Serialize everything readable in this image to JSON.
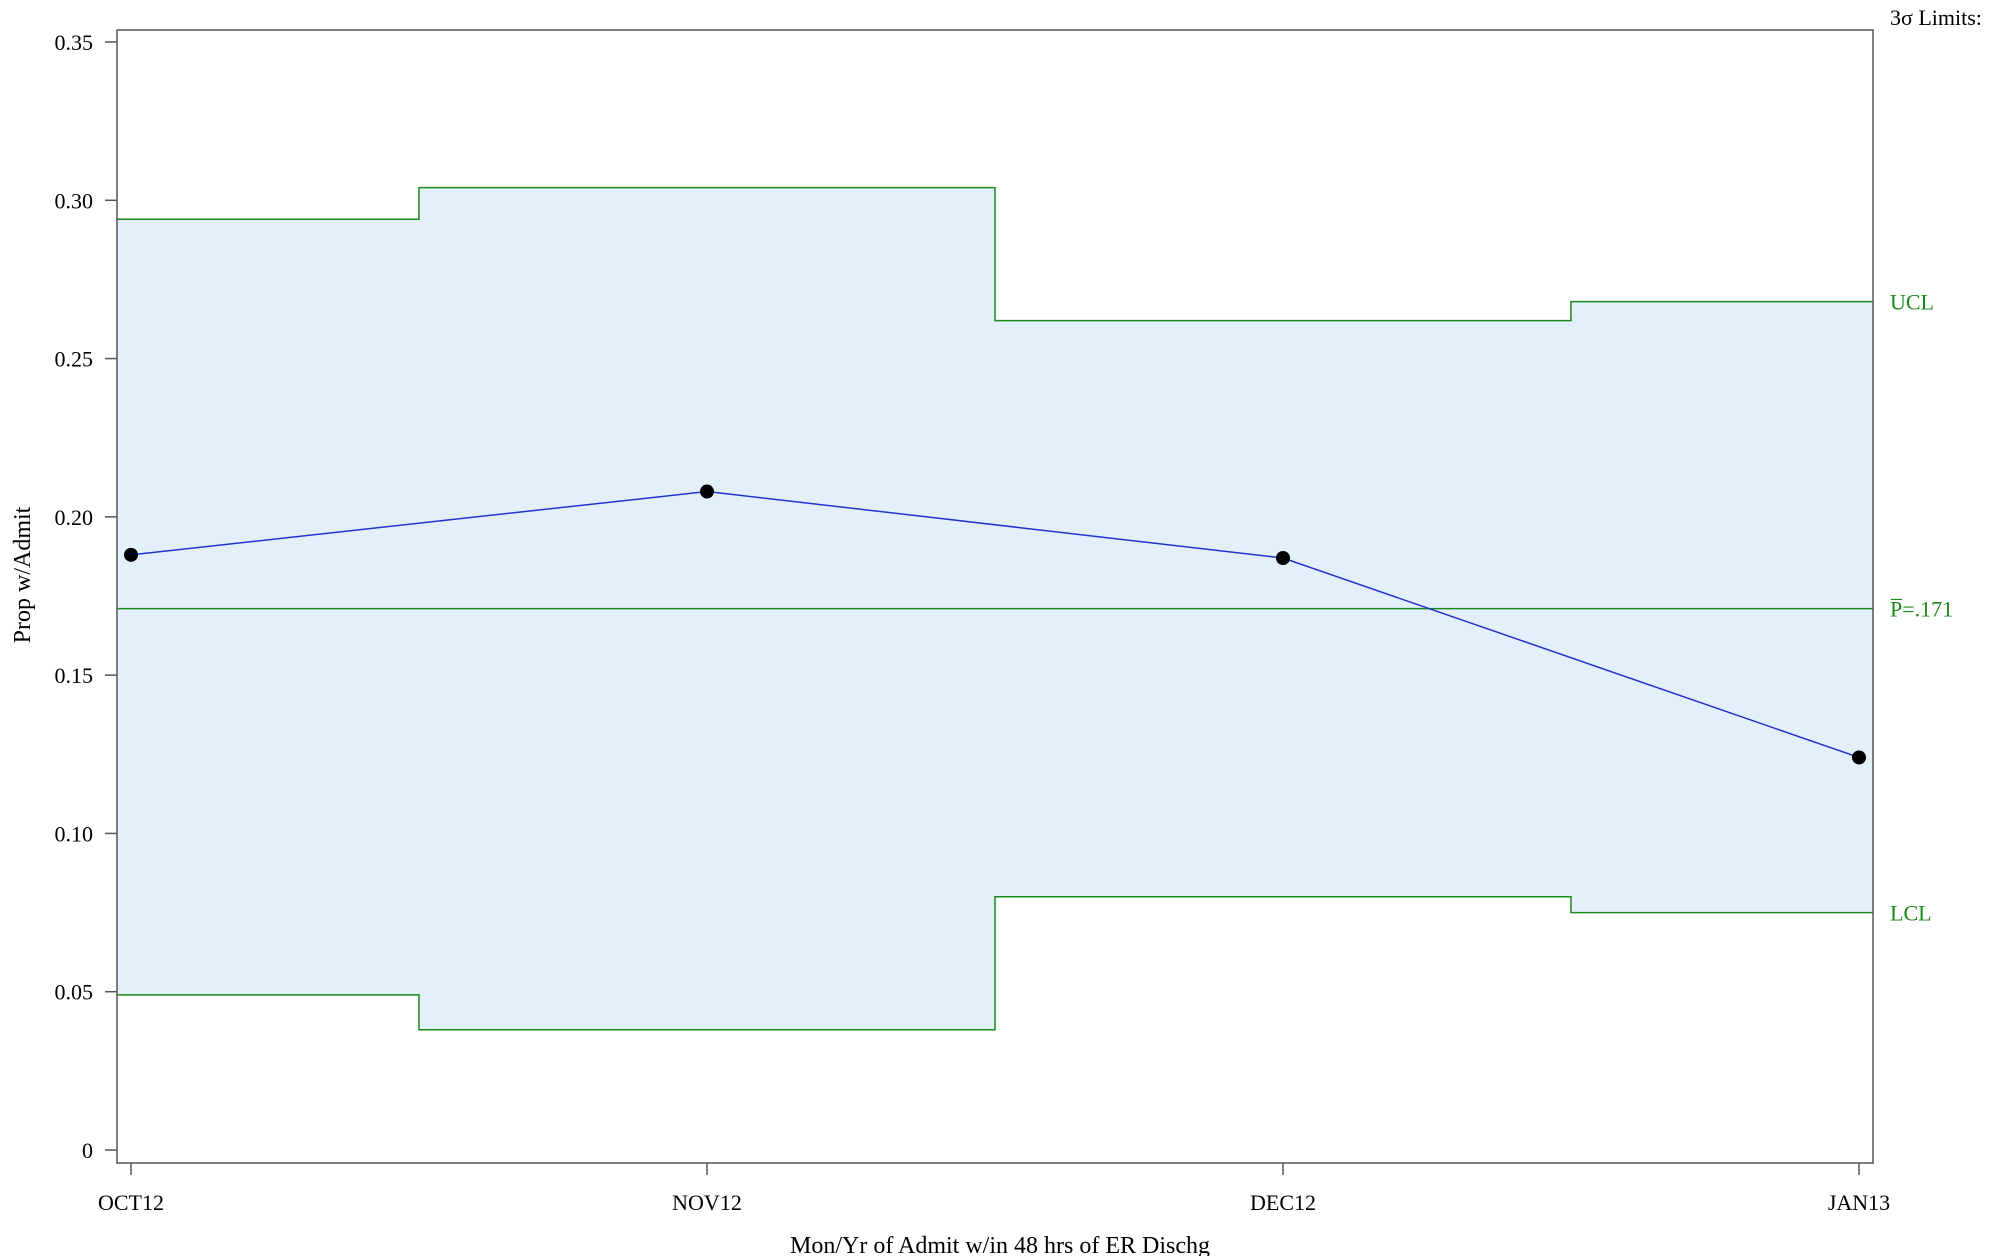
{
  "colors": {
    "limits": "#1a8a1a",
    "band": "#e3f0fc",
    "series": "#2233cc",
    "markers": "#000000",
    "frame": "#555555"
  },
  "chart_data": {
    "type": "line",
    "subtype": "p-chart (control chart, stepped control limits)",
    "xlabel": "Mon/Yr of Admit w/in 48 hrs of ER Dischg",
    "ylabel": "Prop w/Admit",
    "categories": [
      "OCT12",
      "NOV12",
      "DEC12",
      "JAN13"
    ],
    "ylim": [
      0,
      0.35
    ],
    "yticks": [
      0,
      0.05,
      0.1,
      0.15,
      0.2,
      0.25,
      0.3,
      0.35
    ],
    "ytick_labels": [
      "0",
      "0.05",
      "0.10",
      "0.15",
      "0.20",
      "0.25",
      "0.30",
      "0.35"
    ],
    "series": [
      {
        "values": [
          0.188,
          0.208,
          0.187,
          0.124
        ]
      }
    ],
    "center_line": 0.171,
    "ucl": [
      0.294,
      0.304,
      0.262,
      0.268
    ],
    "lcl": [
      0.049,
      0.038,
      0.08,
      0.075
    ],
    "limits_header": "3σ Limits:",
    "ucl_label": "UCL",
    "center_label": "P̅=.171",
    "lcl_label": "LCL",
    "grid": false,
    "legend": "none"
  }
}
